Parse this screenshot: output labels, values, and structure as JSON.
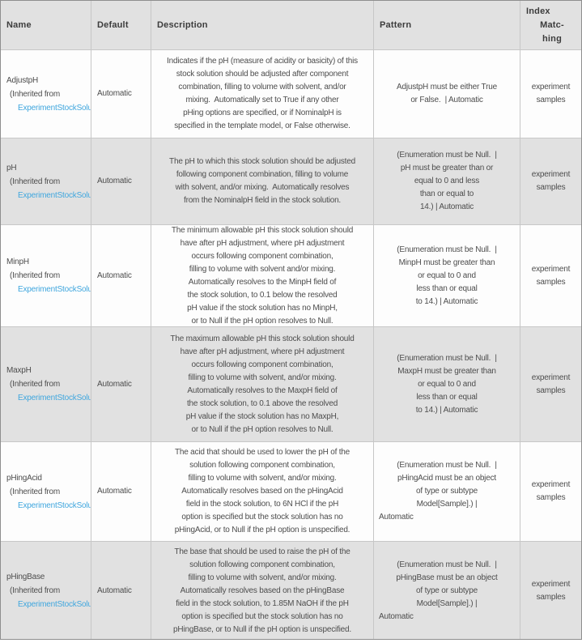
{
  "colors": {
    "link_blue": "#41a7de",
    "stripe_gray": "#e1e1e1",
    "row_white": "#fdfdfd",
    "inner_border": "#c7c7c7",
    "outer_border": "#8e8e8e",
    "text_gray": "#4d4d4d"
  },
  "header": {
    "name": "Name",
    "default": "Default",
    "description": "Description",
    "pattern": "Pattern",
    "index_lines": [
      {
        "t": "Index",
        "a": "left"
      },
      {
        "t": "Matc-"
      },
      {
        "t": "hing"
      }
    ]
  },
  "rows": [
    {
      "name": "AdjustpH",
      "inherited_prefix": "(Inherited from",
      "inherited_link": "ExperimentStockSolu",
      "default": "Automatic",
      "description_lines": [
        "Indicates if the pH (measure of acidity or basicity) of this",
        "stock solution should be adjusted after component",
        "combination, filling to volume with solvent, and/or",
        "mixing.  Automatically set to True if any other",
        "pHing options are specified, or if NominalpH is",
        "specified in the template model, or False otherwise."
      ],
      "pattern_lines": [
        "AdjustpH must be either True",
        "or False.  | Automatic"
      ],
      "index_lines": [
        "experiment",
        "samples"
      ]
    },
    {
      "name": "pH",
      "inherited_prefix": "(Inherited from",
      "inherited_link": "ExperimentStockSolu",
      "default": "Automatic",
      "description_lines": [
        "The pH to which this stock solution should be adjusted",
        "following component combination, filling to volume",
        "with solvent, and/or mixing.  Automatically resolves",
        "from the NominalpH field in the stock solution."
      ],
      "pattern_lines": [
        "(Enumeration must be Null.  |",
        "pH must be greater than or",
        "equal to 0 and less",
        "than or equal to",
        "14.) | Automatic"
      ],
      "index_lines": [
        "experiment",
        "samples"
      ]
    },
    {
      "name": "MinpH",
      "inherited_prefix": "(Inherited from",
      "inherited_link": "ExperimentStockSolu",
      "default": "Automatic",
      "description_lines": [
        "The minimum allowable pH this stock solution should",
        "have after pH adjustment, where pH adjustment",
        "occurs following component combination,",
        "filling to volume with solvent and/or mixing.",
        "Automatically resolves to the MinpH field of",
        "the stock solution, to 0.1 below the resolved",
        "pH value if the stock solution has no MinpH,",
        "or to Null if the pH option resolves to Null."
      ],
      "pattern_lines": [
        "(Enumeration must be Null.  |",
        "MinpH must be greater than",
        "or equal to 0 and",
        "less than or equal",
        "to 14.) | Automatic"
      ],
      "index_lines": [
        "experiment",
        "samples"
      ]
    },
    {
      "name": "MaxpH",
      "inherited_prefix": "(Inherited from",
      "inherited_link": "ExperimentStockSolu",
      "default": "Automatic",
      "description_lines": [
        "The maximum allowable pH this stock solution should",
        "have after pH adjustment, where pH adjustment",
        "occurs following component combination,",
        "filling to volume with solvent, and/or mixing.",
        "Automatically resolves to the MaxpH field of",
        "the stock solution, to 0.1 above the resolved",
        "pH value if the stock solution has no MaxpH,",
        "or to Null if the pH option resolves to Null."
      ],
      "pattern_lines": [
        "(Enumeration must be Null.  |",
        "MaxpH must be greater than",
        "or equal to 0 and",
        "less than or equal",
        "to 14.) | Automatic"
      ],
      "index_lines": [
        "experiment",
        "samples"
      ]
    },
    {
      "name": "pHingAcid",
      "inherited_prefix": "(Inherited from",
      "inherited_link": "ExperimentStockSolu",
      "default": "Automatic",
      "description_lines": [
        "The acid that should be used to lower the pH of the",
        "solution following component combination,",
        "filling to volume with solvent, and/or mixing.",
        "Automatically resolves based on the pHingAcid",
        "field in the stock solution, to 6N HCl if the pH",
        "option is specified but the stock solution has no",
        "pHingAcid, or to Null if the pH option is unspecified."
      ],
      "pattern_lines": [
        "(Enumeration must be Null.  |",
        "pHingAcid must be an object",
        "of type or subtype",
        "Model[Sample].) |",
        {
          "t": "Automatic",
          "a": "left"
        }
      ],
      "index_lines": [
        "experiment",
        "samples"
      ]
    },
    {
      "name": "pHingBase",
      "inherited_prefix": "(Inherited from",
      "inherited_link": "ExperimentStockSolu",
      "default": "Automatic",
      "description_lines": [
        "The base that should be used to raise the pH of the",
        "solution following component combination,",
        "filling to volume with solvent, and/or mixing.",
        "Automatically resolves based on the pHingBase",
        "field in the stock solution, to 1.85M NaOH if the pH",
        "option is specified but the stock solution has no",
        "pHingBase, or to Null if the pH option is unspecified."
      ],
      "pattern_lines": [
        "(Enumeration must be Null.  |",
        "pHingBase must be an object",
        "of type or subtype",
        "Model[Sample].) |",
        {
          "t": "Automatic",
          "a": "left"
        }
      ],
      "index_lines": [
        "experiment",
        "samples"
      ]
    }
  ]
}
